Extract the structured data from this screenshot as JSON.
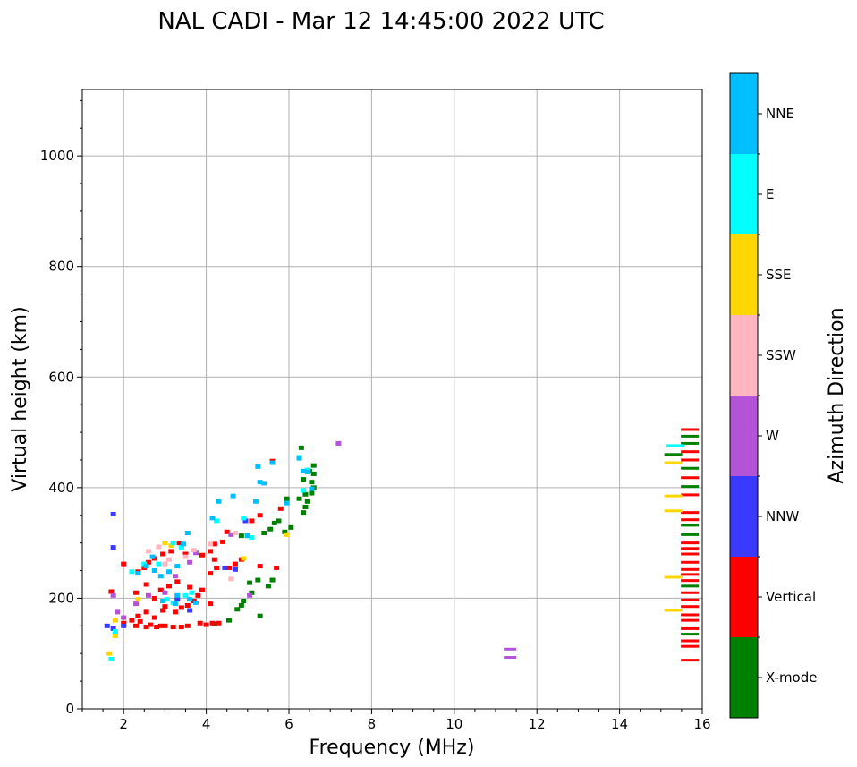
{
  "chart_data": {
    "type": "scatter",
    "title": "NAL CADI - Mar 12 14:45:00 2022 UTC",
    "xlabel": "Frequency (MHz)",
    "ylabel": "Virtual height (km)",
    "xlim": [
      1,
      16
    ],
    "ylim": [
      0,
      1120
    ],
    "xticks": [
      2,
      4,
      6,
      8,
      10,
      12,
      14,
      16
    ],
    "yticks": [
      0,
      200,
      400,
      600,
      800,
      1000
    ],
    "grid": true,
    "colorbar": {
      "label": "Azimuth Direction",
      "categories": [
        {
          "name": "X-mode",
          "color": "#008000"
        },
        {
          "name": "Vertical",
          "color": "#ff0000"
        },
        {
          "name": "NNW",
          "color": "#3a3aff"
        },
        {
          "name": "W",
          "color": "#b452d8"
        },
        {
          "name": "SSW",
          "color": "#ffb6c1"
        },
        {
          "name": "SSE",
          "color": "#ffd700"
        },
        {
          "name": "E",
          "color": "#00ffff"
        },
        {
          "name": "NNE",
          "color": "#00bfff"
        }
      ]
    },
    "series": [
      {
        "name": "X-mode",
        "points": [
          [
            4.2,
            153
          ],
          [
            4.55,
            160
          ],
          [
            4.75,
            180
          ],
          [
            4.85,
            187
          ],
          [
            4.9,
            195
          ],
          [
            5.1,
            210
          ],
          [
            5.3,
            168
          ],
          [
            5.05,
            228
          ],
          [
            5.25,
            233
          ],
          [
            5.5,
            222
          ],
          [
            5.6,
            233
          ],
          [
            4.85,
            313
          ],
          [
            5.0,
            313
          ],
          [
            5.4,
            318
          ],
          [
            5.55,
            325
          ],
          [
            5.65,
            336
          ],
          [
            5.75,
            340
          ],
          [
            5.9,
            320
          ],
          [
            6.05,
            328
          ],
          [
            6.35,
            355
          ],
          [
            6.4,
            365
          ],
          [
            6.45,
            375
          ],
          [
            6.4,
            388
          ],
          [
            6.55,
            390
          ],
          [
            6.6,
            400
          ],
          [
            6.55,
            410
          ],
          [
            6.6,
            425
          ],
          [
            6.6,
            440
          ],
          [
            6.5,
            430
          ],
          [
            6.35,
            415
          ],
          [
            6.3,
            472
          ],
          [
            5.95,
            380
          ],
          [
            6.25,
            380
          ],
          [
            15.7,
            135
          ],
          [
            15.7,
            222
          ],
          [
            15.7,
            315
          ],
          [
            15.7,
            332
          ],
          [
            15.7,
            402
          ],
          [
            15.7,
            435
          ],
          [
            15.7,
            480
          ],
          [
            15.7,
            493
          ],
          [
            15.3,
            460
          ]
        ]
      },
      {
        "name": "Vertical",
        "points": [
          [
            2.0,
            262
          ],
          [
            2.3,
            150
          ],
          [
            2.4,
            158
          ],
          [
            2.55,
            148
          ],
          [
            2.65,
            152
          ],
          [
            2.8,
            148
          ],
          [
            2.9,
            150
          ],
          [
            3.0,
            150
          ],
          [
            3.2,
            148
          ],
          [
            3.4,
            148
          ],
          [
            3.55,
            150
          ],
          [
            3.85,
            155
          ],
          [
            4.0,
            152
          ],
          [
            4.15,
            155
          ],
          [
            4.3,
            155
          ],
          [
            2.35,
            168
          ],
          [
            2.55,
            175
          ],
          [
            2.75,
            165
          ],
          [
            2.95,
            178
          ],
          [
            3.0,
            185
          ],
          [
            3.25,
            175
          ],
          [
            3.4,
            183
          ],
          [
            3.55,
            187
          ],
          [
            3.7,
            195
          ],
          [
            3.8,
            205
          ],
          [
            3.9,
            215
          ],
          [
            4.1,
            190
          ],
          [
            2.3,
            210
          ],
          [
            2.55,
            225
          ],
          [
            2.75,
            200
          ],
          [
            2.9,
            215
          ],
          [
            3.1,
            222
          ],
          [
            3.3,
            230
          ],
          [
            3.6,
            220
          ],
          [
            2.35,
            248
          ],
          [
            2.5,
            255
          ],
          [
            2.6,
            265
          ],
          [
            2.75,
            272
          ],
          [
            2.95,
            280
          ],
          [
            3.15,
            285
          ],
          [
            3.35,
            300
          ],
          [
            3.5,
            280
          ],
          [
            3.9,
            278
          ],
          [
            4.1,
            285
          ],
          [
            4.2,
            298
          ],
          [
            4.4,
            302
          ],
          [
            4.5,
            320
          ],
          [
            4.1,
            245
          ],
          [
            4.25,
            255
          ],
          [
            4.55,
            255
          ],
          [
            4.7,
            262
          ],
          [
            4.85,
            270
          ],
          [
            4.2,
            270
          ],
          [
            5.3,
            258
          ],
          [
            5.7,
            255
          ],
          [
            1.7,
            212
          ],
          [
            2.2,
            160
          ],
          [
            2.0,
            155
          ],
          [
            5.1,
            340
          ],
          [
            5.3,
            350
          ],
          [
            5.6,
            448
          ],
          [
            5.8,
            362
          ],
          [
            15.7,
            88
          ],
          [
            15.7,
            113
          ],
          [
            15.7,
            123
          ],
          [
            15.7,
            145
          ],
          [
            15.7,
            160
          ],
          [
            15.7,
            170
          ],
          [
            15.7,
            185
          ],
          [
            15.7,
            197
          ],
          [
            15.7,
            210
          ],
          [
            15.7,
            232
          ],
          [
            15.7,
            243
          ],
          [
            15.7,
            252
          ],
          [
            15.7,
            265
          ],
          [
            15.7,
            280
          ],
          [
            15.7,
            290
          ],
          [
            15.7,
            300
          ],
          [
            15.7,
            342
          ],
          [
            15.7,
            355
          ],
          [
            15.7,
            387
          ],
          [
            15.7,
            418
          ],
          [
            15.7,
            450
          ],
          [
            15.7,
            465
          ],
          [
            15.7,
            505
          ]
        ]
      },
      {
        "name": "NNW",
        "points": [
          [
            1.75,
            352
          ],
          [
            1.75,
            292
          ],
          [
            1.6,
            150
          ],
          [
            1.75,
            145
          ],
          [
            2.0,
            150
          ],
          [
            3.3,
            198
          ],
          [
            3.6,
            178
          ],
          [
            4.45,
            255
          ],
          [
            4.7,
            252
          ],
          [
            4.95,
            340
          ]
        ]
      },
      {
        "name": "W",
        "points": [
          [
            1.75,
            205
          ],
          [
            1.85,
            175
          ],
          [
            2.0,
            165
          ],
          [
            2.3,
            190
          ],
          [
            2.6,
            205
          ],
          [
            3.0,
            210
          ],
          [
            3.25,
            240
          ],
          [
            3.6,
            265
          ],
          [
            3.75,
            282
          ],
          [
            4.6,
            315
          ],
          [
            5.05,
            205
          ],
          [
            7.2,
            480
          ],
          [
            11.35,
            108
          ],
          [
            11.35,
            93
          ]
        ]
      },
      {
        "name": "SSW",
        "points": [
          [
            2.6,
            285
          ],
          [
            2.85,
            293
          ],
          [
            3.0,
            262
          ],
          [
            3.1,
            270
          ],
          [
            3.5,
            275
          ],
          [
            3.7,
            287
          ],
          [
            4.1,
            298
          ],
          [
            4.6,
            235
          ],
          [
            4.7,
            318
          ]
        ]
      },
      {
        "name": "SSE",
        "points": [
          [
            1.65,
            100
          ],
          [
            1.8,
            132
          ],
          [
            1.8,
            160
          ],
          [
            2.35,
            198
          ],
          [
            3.0,
            300
          ],
          [
            3.15,
            295
          ],
          [
            4.9,
            272
          ],
          [
            5.95,
            315
          ],
          [
            15.3,
            178
          ],
          [
            15.3,
            238
          ],
          [
            15.3,
            358
          ],
          [
            15.3,
            385
          ],
          [
            15.3,
            445
          ]
        ]
      },
      {
        "name": "E",
        "points": [
          [
            1.7,
            90
          ],
          [
            1.8,
            140
          ],
          [
            2.2,
            248
          ],
          [
            2.5,
            262
          ],
          [
            2.85,
            262
          ],
          [
            3.2,
            300
          ],
          [
            3.4,
            292
          ],
          [
            3.5,
            205
          ],
          [
            3.2,
            192
          ],
          [
            3.05,
            198
          ],
          [
            3.65,
            210
          ],
          [
            4.25,
            340
          ],
          [
            4.9,
            345
          ],
          [
            5.1,
            310
          ],
          [
            6.35,
            395
          ],
          [
            6.25,
            455
          ],
          [
            6.45,
            432
          ],
          [
            15.35,
            476
          ]
        ]
      },
      {
        "name": "NNE",
        "points": [
          [
            2.35,
            245
          ],
          [
            2.55,
            258
          ],
          [
            2.7,
            275
          ],
          [
            2.75,
            250
          ],
          [
            2.9,
            240
          ],
          [
            3.1,
            248
          ],
          [
            3.3,
            258
          ],
          [
            3.45,
            298
          ],
          [
            3.55,
            318
          ],
          [
            3.6,
            198
          ],
          [
            3.75,
            192
          ],
          [
            3.3,
            205
          ],
          [
            3.25,
            190
          ],
          [
            2.95,
            195
          ],
          [
            4.15,
            345
          ],
          [
            4.3,
            375
          ],
          [
            4.65,
            385
          ],
          [
            5.0,
            313
          ],
          [
            5.2,
            375
          ],
          [
            5.3,
            410
          ],
          [
            5.4,
            408
          ],
          [
            5.25,
            438
          ],
          [
            5.6,
            445
          ],
          [
            5.95,
            372
          ],
          [
            6.25,
            453
          ],
          [
            6.35,
            430
          ],
          [
            6.45,
            428
          ],
          [
            6.55,
            398
          ]
        ]
      }
    ]
  }
}
